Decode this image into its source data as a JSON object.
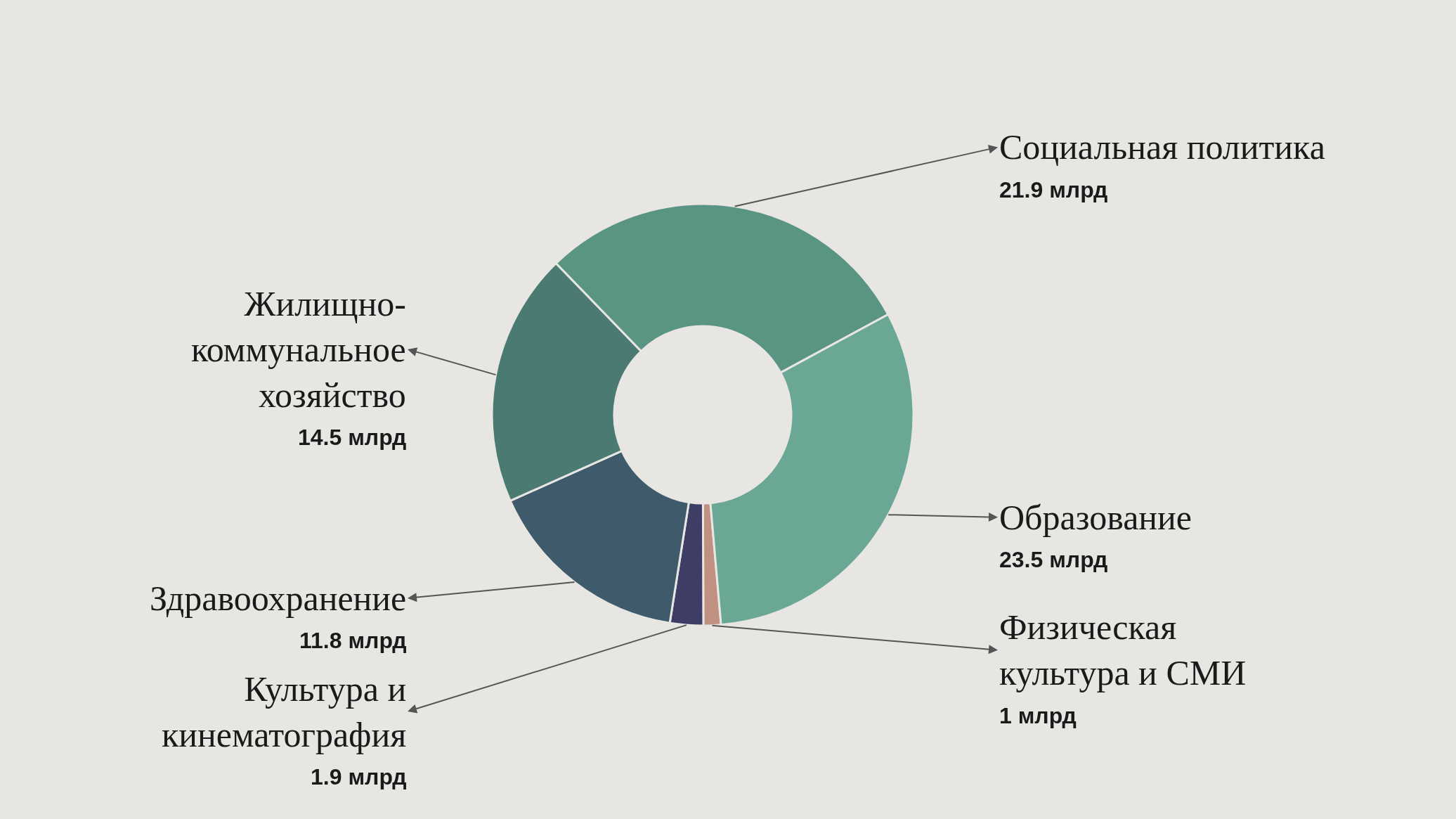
{
  "chart_data": {
    "type": "donut",
    "categories": [
      "Физическая культура и СМИ",
      "Культура и кинематография",
      "Здравоохранение",
      "Жилищно-коммунальное хозяйство",
      "Социальная политика",
      "Образование"
    ],
    "values": [
      1,
      1.9,
      11.8,
      14.5,
      21.9,
      23.5
    ],
    "value_labels": [
      "1 млрд",
      "1.9 млрд",
      "11.8 млрд",
      "14.5 млрд",
      "21.9 млрд",
      "23.5 млрд"
    ],
    "colors": [
      "#c09080",
      "#3d3d66",
      "#3e5a6b",
      "#4a7a72",
      "#5a9483",
      "#6aa895"
    ]
  }
}
